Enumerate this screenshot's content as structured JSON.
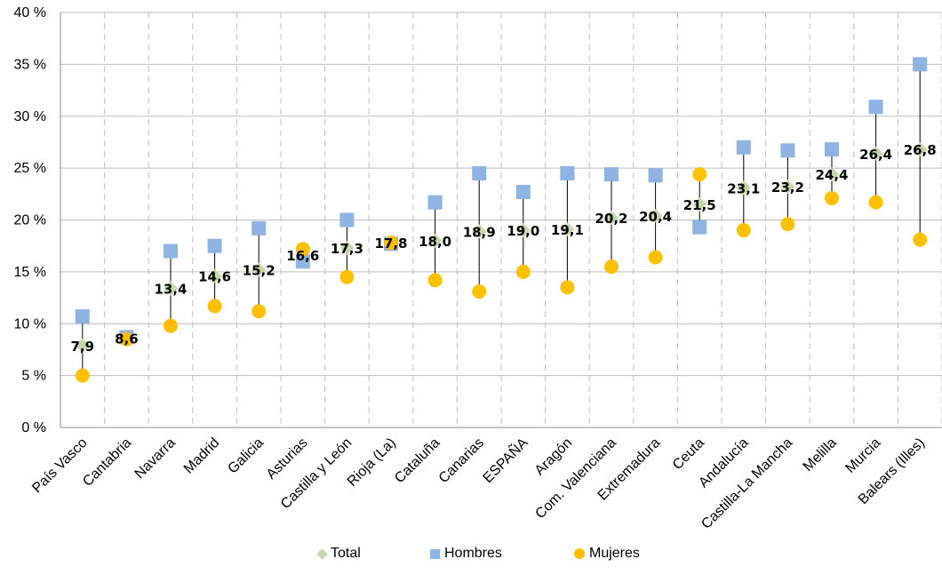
{
  "chart_data": {
    "type": "scatter",
    "title": "",
    "xlabel": "",
    "ylabel": "",
    "ylim": [
      0,
      40
    ],
    "y_ticks": [
      0,
      5,
      10,
      15,
      20,
      25,
      30,
      35,
      40
    ],
    "y_tick_labels": [
      "0 %",
      "5 %",
      "10 %",
      "15 %",
      "20 %",
      "25 %",
      "30 %",
      "35 %",
      "40 %"
    ],
    "grid": "horizontal solid, vertical dashed",
    "legend_position": "bottom",
    "categories": [
      "País Vasco",
      "Cantabria",
      "Navarra",
      "Madrid",
      "Galicia",
      "Asturias",
      "Castilla y León",
      "Rioja (La)",
      "Cataluña",
      "Canarias",
      "ESPAÑA",
      "Aragón",
      "Com. Valenciana",
      "Extremadura",
      "Ceuta",
      "Andalucía",
      "Castilla-La Mancha",
      "Melilla",
      "Murcia",
      "Balears (Illes)"
    ],
    "series": [
      {
        "name": "Total",
        "marker": "diamond",
        "color": "#C4D9A9",
        "values": [
          7.9,
          8.6,
          13.4,
          14.6,
          15.2,
          16.6,
          17.3,
          17.8,
          18.0,
          18.9,
          19.0,
          19.1,
          20.2,
          20.4,
          21.5,
          23.1,
          23.2,
          24.4,
          26.4,
          26.8
        ]
      },
      {
        "name": "Hombres",
        "marker": "square",
        "color": "#8EB4E3",
        "values": [
          10.7,
          8.7,
          17.0,
          17.5,
          19.2,
          16.0,
          20.0,
          17.7,
          21.7,
          24.5,
          22.7,
          24.5,
          24.4,
          24.3,
          19.3,
          27.0,
          26.7,
          26.8,
          30.9,
          35.0
        ]
      },
      {
        "name": "Mujeres",
        "marker": "circle",
        "color": "#FFC000",
        "values": [
          5.0,
          8.5,
          9.8,
          11.7,
          11.2,
          17.2,
          14.5,
          17.8,
          14.2,
          13.1,
          15.0,
          13.5,
          15.5,
          16.4,
          24.4,
          19.0,
          19.6,
          22.1,
          21.7,
          18.1
        ]
      }
    ],
    "data_labels": [
      "7,9",
      "8,6",
      "13,4",
      "14,6",
      "15,2",
      "16,6",
      "17,3",
      "17,8",
      "18,0",
      "18,9",
      "19,0",
      "19,1",
      "20,2",
      "20,4",
      "21,5",
      "23,1",
      "23,2",
      "24,4",
      "26,4",
      "26,8"
    ]
  },
  "legend": {
    "total": "Total",
    "hombres": "Hombres",
    "mujeres": "Mujeres"
  },
  "colors": {
    "total": "#C4D9A9",
    "hombres": "#8EB4E3",
    "mujeres": "#FFC000",
    "grid": "#BFBFBF",
    "line": "#000000"
  }
}
